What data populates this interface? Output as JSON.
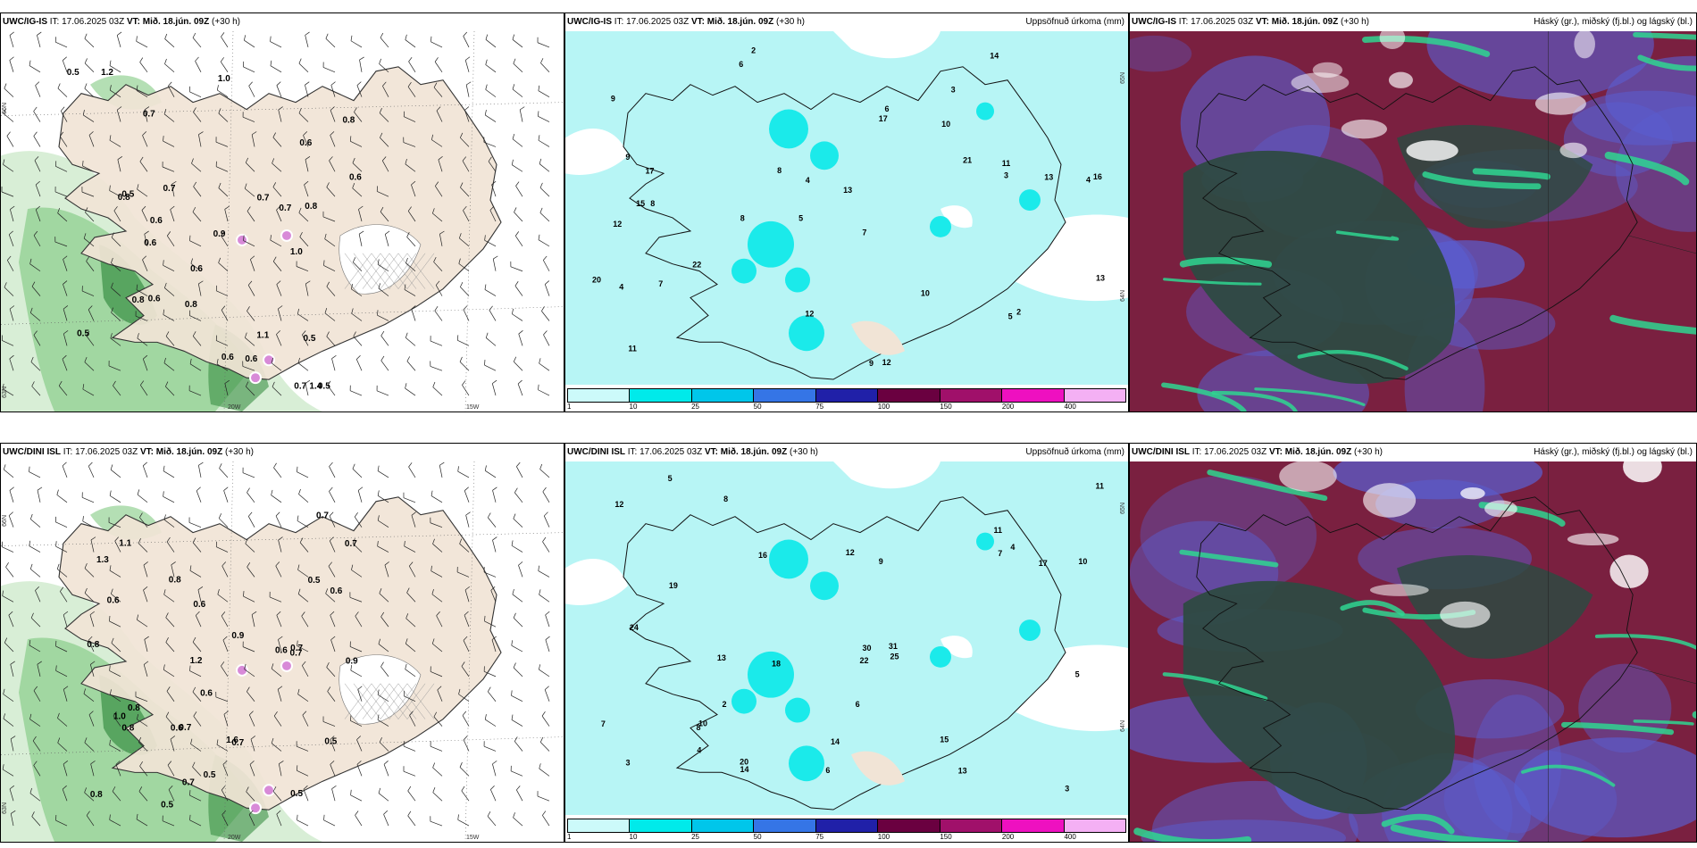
{
  "rows": [
    {
      "model": "UWC/IG-IS",
      "panels": [
        {
          "type": "wind",
          "title_model": "UWC/IG-IS",
          "it_label": "IT: 17.06.2025 03Z",
          "vt_label": "VT: Mið. 18.jún. 09Z",
          "lead": "(+30 h)",
          "right_title": "",
          "axes": {
            "lat_top": "66N",
            "lat_bottom": "63N",
            "lon_mid": "20W",
            "lon_right": "15W"
          },
          "values": [
            "0.6",
            "0.8",
            "1.2",
            "1.0",
            "0.5",
            "0.7",
            "0.8",
            "0.6",
            "0.6",
            "0.7",
            "0.8",
            "1.0",
            "0.5",
            "0.7",
            "0.6",
            "1.1",
            "0.9",
            "0.6",
            "0.8",
            "0.7",
            "1.4",
            "0.5",
            "0.6",
            "0.8",
            "0.5",
            "0.7",
            "0.6",
            "0.5",
            "0.6"
          ]
        },
        {
          "type": "precip",
          "title_model": "UWC/IG-IS",
          "it_label": "IT: 17.06.2025 03Z",
          "vt_label": "VT: Mið. 18.jún. 09Z",
          "lead": "(+30 h)",
          "right_title": "Uppsöfnuð úrkoma (mm)",
          "axes": {
            "lat_top": "65N",
            "lat_bottom": "64N"
          },
          "values": [
            "2",
            "3",
            "4",
            "5",
            "7",
            "8",
            "9",
            "10",
            "12",
            "17",
            "13",
            "11",
            "6",
            "8",
            "9",
            "12",
            "12",
            "14",
            "21",
            "22",
            "17",
            "15",
            "16",
            "13",
            "20",
            "9",
            "4",
            "3",
            "2",
            "4",
            "5",
            "6",
            "7",
            "8",
            "10",
            "13",
            "11"
          ],
          "colorbar": [
            "1",
            "10",
            "25",
            "50",
            "75",
            "100",
            "150",
            "200",
            "400"
          ]
        },
        {
          "type": "cloud",
          "title_model": "UWC/IG-IS",
          "it_label": "IT: 17.06.2025 03Z",
          "vt_label": "VT: Mið. 18.jún. 09Z",
          "lead": "(+30 h)",
          "right_title": "Háský (gr.), miðský (fj.bl.) og lágský (bl.)"
        }
      ]
    },
    {
      "model": "UWC/DINI ISL",
      "panels": [
        {
          "type": "wind",
          "title_model": "UWC/DINI ISL",
          "it_label": "IT: 17.06.2025 03Z",
          "vt_label": "VT: Mið. 18.jún. 09Z",
          "lead": "(+30 h)",
          "right_title": "",
          "axes": {
            "lat_top": "66N",
            "lat_bottom": "63N",
            "lon_mid": "20W",
            "lon_right": "15W"
          },
          "values": [
            "0.6",
            "0.5",
            "0.7",
            "0.6",
            "0.5",
            "0.8",
            "1.2",
            "1.0",
            "0.7",
            "0.9",
            "0.8",
            "1.1",
            "0.5",
            "0.6",
            "0.8",
            "0.7",
            "0.7",
            "0.6",
            "0.8",
            "0.9",
            "1.6",
            "1.3",
            "0.8",
            "0.7",
            "0.6",
            "0.5",
            "0.7",
            "0.6",
            "0.7",
            "0.5"
          ]
        },
        {
          "type": "precip",
          "title_model": "UWC/DINI ISL",
          "it_label": "IT: 17.06.2025 03Z",
          "vt_label": "VT: Mið. 18.jún. 09Z",
          "lead": "(+30 h)",
          "right_title": "Uppsöfnuð úrkoma (mm)",
          "axes": {
            "lat_top": "65N",
            "lat_bottom": "64N"
          },
          "values": [
            "3",
            "4",
            "5",
            "6",
            "7",
            "8",
            "10",
            "11",
            "14",
            "17",
            "13",
            "12",
            "9",
            "16",
            "20",
            "18",
            "19",
            "22",
            "25",
            "30",
            "24",
            "31",
            "11",
            "14",
            "15",
            "13",
            "12",
            "10",
            "8",
            "7",
            "6",
            "5",
            "4",
            "3",
            "2"
          ],
          "colorbar": [
            "1",
            "10",
            "25",
            "50",
            "75",
            "100",
            "150",
            "200",
            "400"
          ]
        },
        {
          "type": "cloud",
          "title_model": "UWC/DINI ISL",
          "it_label": "IT: 17.06.2025 03Z",
          "vt_label": "VT: Mið. 18.jún. 09Z",
          "lead": "(+30 h)",
          "right_title": "Háský (gr.), miðský (fj.bl.) og lágský (bl.)"
        }
      ]
    }
  ],
  "colors": {
    "land": "#f1e4d6",
    "sea_precip": "#b7f5f5",
    "wind_green_light": "#d6eed4",
    "wind_green_mid": "#8fce8e",
    "wind_green_dark": "#2f8a3a",
    "cloud_dark": "#2e4a42",
    "cloud_red": "#7a2040",
    "cloud_blue": "#5a5ed0",
    "cloud_teal": "#2fd690",
    "colorbar": [
      "#ccfafa",
      "#00eaea",
      "#00c6ea",
      "#3575e6",
      "#2020a8",
      "#6a0040",
      "#a0106a",
      "#ee10c0",
      "#f4b0f4"
    ]
  }
}
